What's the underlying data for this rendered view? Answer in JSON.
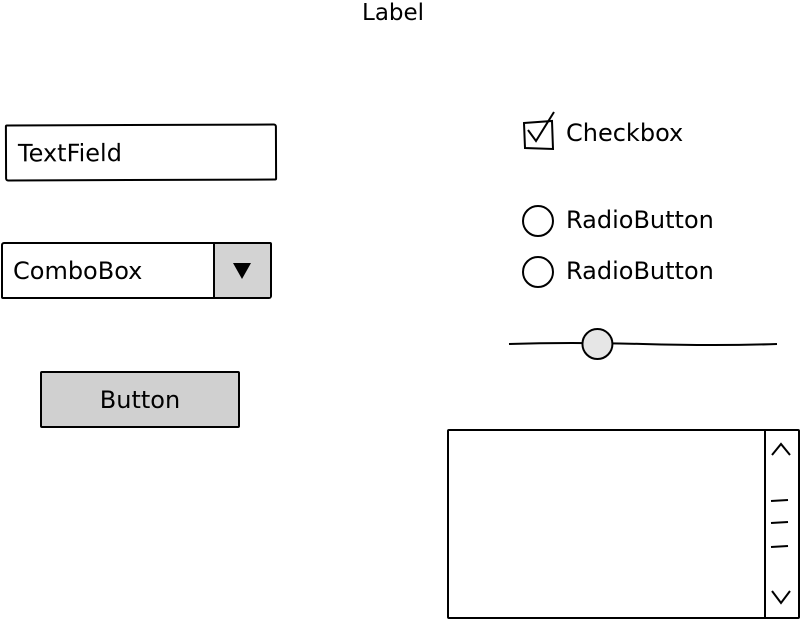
{
  "label": {
    "text": "Label"
  },
  "textfield": {
    "value": "TextField"
  },
  "combobox": {
    "value": "ComboBox",
    "drop_icon": "triangle-down-icon"
  },
  "button": {
    "label": "Button"
  },
  "checkbox": {
    "label": "Checkbox",
    "checked": true
  },
  "radios": [
    {
      "label": "RadioButton",
      "selected": false
    },
    {
      "label": "RadioButton",
      "selected": false
    }
  ],
  "slider": {
    "value": 0.33
  },
  "listbox": {
    "items": [],
    "scroll_up_icon": "chevron-up-icon",
    "scroll_down_icon": "chevron-down-icon"
  },
  "colors": {
    "control_fill": "#d3d3d3",
    "thumb_fill": "#e6e6e6",
    "stroke": "#000000"
  }
}
